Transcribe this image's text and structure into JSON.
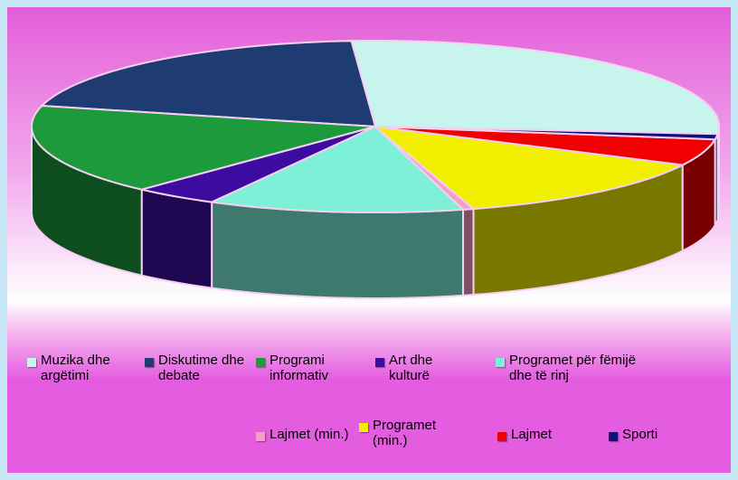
{
  "chart_data": {
    "type": "pie3d",
    "categories": [
      "Muzika dhe argëtimi",
      "Diskutime dhe debate",
      "Programi informativ",
      "Art dhe kulturë",
      "Programet për fëmijë dhe të rinj",
      "Lajmet (min.)",
      "Programet (min.)",
      "Lajmet",
      "Sporti"
    ],
    "values": [
      27.5,
      20,
      17,
      4,
      12,
      0.5,
      13,
      5,
      1
    ],
    "colors": [
      "#c8f4ee",
      "#1f3c72",
      "#1c9a3c",
      "#3c0ca0",
      "#7ef0d8",
      "#f4a0c4",
      "#f0f000",
      "#f00000",
      "#10107e"
    ],
    "legend": "bottom"
  }
}
